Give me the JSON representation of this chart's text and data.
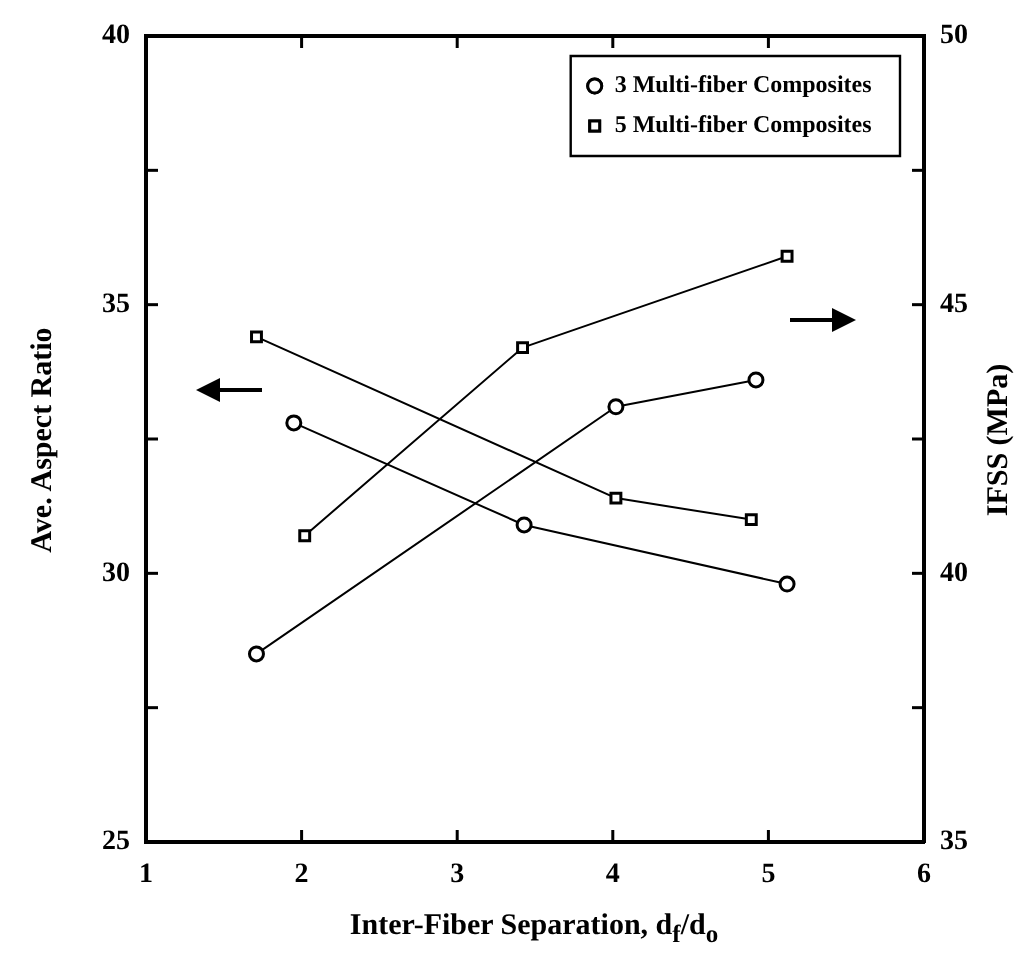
{
  "chart_data": {
    "type": "line",
    "xlabel": "Inter-Fiber Separation, d$_{f}$/d$_{o}$",
    "ylabel": "Ave. Aspect Ratio",
    "y2label": "IFSS (MPa)",
    "xlim": [
      1,
      6
    ],
    "xticks": [
      1,
      2,
      3,
      4,
      5,
      6
    ],
    "ylim": [
      25,
      40
    ],
    "yticks": [
      25,
      {
        "value": 27.5,
        "label": null
      },
      30,
      {
        "value": 32.5,
        "label": null
      },
      35,
      {
        "value": 37.5,
        "label": null
      },
      40
    ],
    "y2lim": [
      35,
      50
    ],
    "y2ticks": [
      35,
      {
        "value": 37.5,
        "label": null
      },
      40,
      {
        "value": 42.5,
        "label": null
      },
      45,
      {
        "value": 47.5,
        "label": null
      },
      50
    ],
    "legend": "top right",
    "grid": false,
    "line_style": "solid",
    "series": [
      {
        "name": "3 Multi-fiber Composites",
        "color": "#000000",
        "marker": "circle",
        "x": [
          1.95,
          3.43,
          5.12
        ],
        "values": [
          32.8,
          30.9,
          29.8
        ]
      },
      {
        "name": "5 Multi-fiber Composites",
        "color": "#000000",
        "marker": "square",
        "x": [
          1.71,
          4.02,
          4.89
        ],
        "values": [
          34.4,
          31.4,
          31.0
        ]
      },
      {
        "color": "#000000",
        "marker": "circle",
        "axis": "y2",
        "x": [
          1.71,
          4.02,
          4.92
        ],
        "values": [
          38.5,
          43.1,
          43.6
        ]
      },
      {
        "color": "#000000",
        "marker": "square",
        "axis": "y2",
        "x": [
          2.02,
          3.42,
          5.12
        ],
        "values": [
          40.7,
          44.2,
          45.9
        ]
      }
    ]
  }
}
